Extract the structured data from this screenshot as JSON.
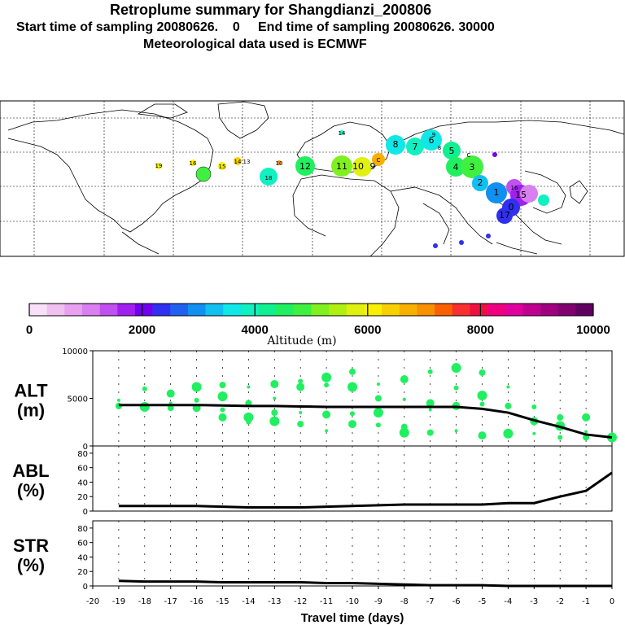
{
  "header": {
    "title": "Retroplume summary for Shangdianzi_200806",
    "line2": "Start time of sampling 20080626.    0     End time of sampling 20080626. 30000",
    "line3": "Meteorological data used is ECMWF"
  },
  "colorbar": {
    "colors": [
      "#f8e0f8",
      "#f0c0f0",
      "#e8a0f0",
      "#d880f0",
      "#c050f0",
      "#a020f0",
      "#7000f0",
      "#3030f0",
      "#2060f0",
      "#1090f0",
      "#10c0f0",
      "#10e8e8",
      "#10f0c0",
      "#10f090",
      "#20f060",
      "#40f040",
      "#80f020",
      "#b0f010",
      "#e0f010",
      "#f8f000",
      "#f8d000",
      "#f8b000",
      "#f89000",
      "#f86000",
      "#f83030",
      "#f01040",
      "#f00080",
      "#e000a0",
      "#c00090",
      "#a00080",
      "#800070",
      "#600060"
    ],
    "labels": [
      "0",
      "2000",
      "4000",
      "6000",
      "8000",
      "10000"
    ],
    "range": [
      0,
      10000
    ],
    "xlabel": "Altitude (m)"
  },
  "map": {
    "labels": [
      "18",
      "19",
      "16",
      "15",
      "14",
      "13",
      "12",
      "11",
      "10",
      "9",
      "8",
      "7",
      "6",
      "5",
      "4",
      "3",
      "2",
      "1",
      "0",
      "17",
      "15",
      "14",
      "10",
      "C",
      "16",
      "9",
      "8",
      "C"
    ]
  },
  "chart_data": [
    {
      "type": "line",
      "panel": "ALT",
      "ylabel_top": "ALT",
      "ylabel_unit": "(m)",
      "ylim": [
        0,
        10000
      ],
      "yticks": [
        "0",
        "5000",
        "10000"
      ],
      "x": [
        -19,
        -18,
        -17,
        -16,
        -15,
        -14,
        -13,
        -12,
        -11,
        -10,
        -9,
        -8,
        -7,
        -6,
        -5,
        -4,
        -3,
        -2,
        -1,
        0
      ],
      "values": [
        4300,
        4300,
        4300,
        4300,
        4250,
        4200,
        4200,
        4150,
        4100,
        4100,
        4100,
        4100,
        4100,
        4100,
        3900,
        3500,
        2700,
        2000,
        1200,
        900
      ],
      "scatter": [
        [
          -19,
          4800
        ],
        [
          -19,
          4200
        ],
        [
          -18,
          4100
        ],
        [
          -18,
          6000
        ],
        [
          -17,
          5500
        ],
        [
          -17,
          4500
        ],
        [
          -17,
          4000
        ],
        [
          -16,
          6200
        ],
        [
          -16,
          4800
        ],
        [
          -16,
          4000
        ],
        [
          -16,
          3800
        ],
        [
          -15,
          6400
        ],
        [
          -15,
          5200
        ],
        [
          -15,
          3800
        ],
        [
          -15,
          3000
        ],
        [
          -14,
          6200
        ],
        [
          -14,
          4500
        ],
        [
          -14,
          3000
        ],
        [
          -14,
          2500
        ],
        [
          -13,
          6500
        ],
        [
          -13,
          5000
        ],
        [
          -13,
          3500
        ],
        [
          -13,
          2600
        ],
        [
          -12,
          6800
        ],
        [
          -12,
          6200
        ],
        [
          -12,
          3500
        ],
        [
          -12,
          2300
        ],
        [
          -11,
          7200
        ],
        [
          -11,
          6400
        ],
        [
          -11,
          3300
        ],
        [
          -11,
          1600
        ],
        [
          -10,
          7800
        ],
        [
          -10,
          6200
        ],
        [
          -10,
          3400
        ],
        [
          -10,
          2300
        ],
        [
          -9,
          6500
        ],
        [
          -9,
          5000
        ],
        [
          -9,
          3500
        ],
        [
          -9,
          2200
        ],
        [
          -8,
          7000
        ],
        [
          -8,
          4900
        ],
        [
          -8,
          2000
        ],
        [
          -8,
          1400
        ],
        [
          -7,
          7800
        ],
        [
          -7,
          4500
        ],
        [
          -7,
          3800
        ],
        [
          -7,
          1400
        ],
        [
          -6,
          8200
        ],
        [
          -6,
          6100
        ],
        [
          -6,
          4200
        ],
        [
          -6,
          1600
        ],
        [
          -5,
          7700
        ],
        [
          -5,
          5300
        ],
        [
          -5,
          4400
        ],
        [
          -5,
          1100
        ],
        [
          -4,
          6200
        ],
        [
          -4,
          4200
        ],
        [
          -4,
          1300
        ],
        [
          -3,
          4100
        ],
        [
          -3,
          2600
        ],
        [
          -3,
          1300
        ],
        [
          -2,
          3000
        ],
        [
          -2,
          2100
        ],
        [
          -2,
          900
        ],
        [
          -1,
          3000
        ],
        [
          -1,
          1500
        ],
        [
          -1,
          900
        ],
        [
          0,
          900
        ]
      ]
    },
    {
      "type": "line",
      "panel": "ABL",
      "ylabel_top": "ABL",
      "ylabel_unit": "(%)",
      "ylim": [
        0,
        90
      ],
      "yticks": [
        "0",
        "20",
        "40",
        "60",
        "80"
      ],
      "x": [
        -19,
        -18,
        -17,
        -16,
        -15,
        -14,
        -13,
        -12,
        -11,
        -10,
        -9,
        -8,
        -7,
        -6,
        -5,
        -4,
        -3,
        -2,
        -1,
        0
      ],
      "values": [
        7,
        7,
        7,
        7,
        6,
        5,
        5,
        5,
        6,
        7,
        8,
        9,
        9,
        9,
        9,
        11,
        11,
        20,
        28,
        53
      ]
    },
    {
      "type": "line",
      "panel": "STR",
      "ylabel_top": "STR",
      "ylabel_unit": "(%)",
      "ylim": [
        0,
        90
      ],
      "yticks": [
        "0",
        "20",
        "40",
        "60",
        "80"
      ],
      "x": [
        -19,
        -18,
        -17,
        -16,
        -15,
        -14,
        -13,
        -12,
        -11,
        -10,
        -9,
        -8,
        -7,
        -6,
        -5,
        -4,
        -3,
        -2,
        -1,
        0
      ],
      "values": [
        7,
        6,
        6,
        6,
        5,
        5,
        5,
        5,
        4,
        4,
        3,
        2,
        1,
        1,
        1,
        0,
        0,
        0,
        0,
        0
      ],
      "xticks": [
        "-20",
        "-19",
        "-18",
        "-17",
        "-16",
        "-15",
        "-14",
        "-13",
        "-12",
        "-11",
        "-10",
        "-9",
        "-8",
        "-7",
        "-6",
        "-5",
        "-4",
        "-3",
        "-2",
        "-1",
        "0"
      ],
      "xlabel": "Travel time (days)"
    }
  ]
}
